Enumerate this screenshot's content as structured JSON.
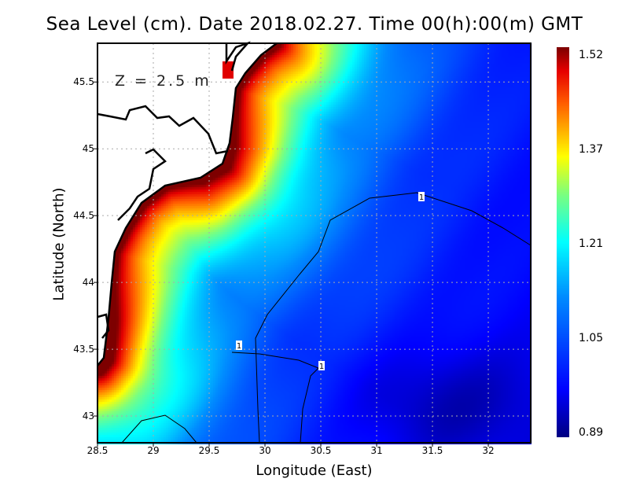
{
  "title": "Sea Level (cm). Date 2018.02.27. Time 00(h):00(m) GMT",
  "depth_label": "Z  =  2.5  m",
  "chart_data": {
    "type": "heatmap",
    "title": "Sea Level (cm). Date 2018.02.27. Time 00(h):00(m) GMT",
    "xlabel": "Longitude (East)",
    "ylabel": "Latitude (North)",
    "xlim": [
      28.5,
      32.38
    ],
    "ylim": [
      42.8,
      45.79
    ],
    "x_ticks": [
      "28.5",
      "29",
      "29.5",
      "30",
      "30.5",
      "31",
      "31.5",
      "32"
    ],
    "y_ticks": [
      "45.5",
      "45",
      "44.5",
      "44",
      "43.5",
      "43"
    ],
    "grid": true,
    "colorbar": {
      "ticks": [
        "1.52",
        "1.37",
        "1.21",
        "1.05",
        "0.89"
      ],
      "min": 0.89,
      "max": 1.52,
      "colormap": "jet"
    },
    "contour_labels": [
      "1",
      "1",
      "1"
    ],
    "land_color": "#ffffff",
    "coastline_color": "#000000"
  }
}
